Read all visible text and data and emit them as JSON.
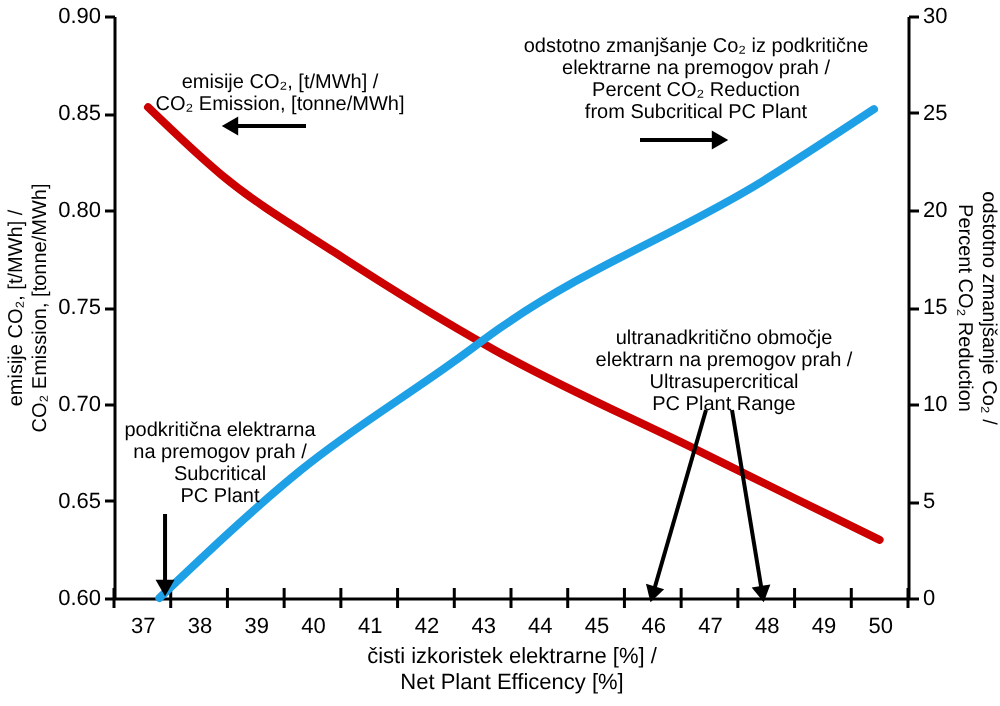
{
  "chart_data": {
    "type": "line",
    "xlabel": "čisti izkoristek elektrarne [%] /\nNet Plant Efficency [%]",
    "ylabel": "emisije CO₂, [t/MWh] /\nCO₂ Emission, [tonne/MWh]",
    "y2label": "odstotno zmanjšanje Co₂ /\nPercent CO₂ Reduction",
    "xlim": [
      36.5,
      50.5
    ],
    "xticks": [
      {
        "value": 36.5,
        "label": null
      },
      37,
      {
        "value": 37.5,
        "label": null
      },
      38,
      {
        "value": 38.5,
        "label": null
      },
      39,
      {
        "value": 39.5,
        "label": null
      },
      40,
      {
        "value": 40.5,
        "label": null
      },
      41,
      {
        "value": 41.5,
        "label": null
      },
      42,
      {
        "value": 42.5,
        "label": null
      },
      43,
      {
        "value": 43.5,
        "label": null
      },
      44,
      {
        "value": 44.5,
        "label": null
      },
      45,
      {
        "value": 45.5,
        "label": null
      },
      46,
      {
        "value": 46.5,
        "label": null
      },
      47,
      {
        "value": 47.5,
        "label": null
      },
      48,
      {
        "value": 48.5,
        "label": null
      },
      49,
      {
        "value": 49.5,
        "label": null
      },
      50,
      {
        "value": 50.5,
        "label": null
      }
    ],
    "ylim": [
      0.6,
      0.9
    ],
    "yticks": [
      {
        "value": 0.6,
        "label": "0.60"
      },
      {
        "value": 0.65,
        "label": "0.65"
      },
      {
        "value": 0.7,
        "label": "0.70"
      },
      {
        "value": 0.75,
        "label": "0.75"
      },
      {
        "value": 0.8,
        "label": "0.80"
      },
      {
        "value": 0.85,
        "label": "0.85"
      },
      {
        "value": 0.9,
        "label": "0.90"
      }
    ],
    "y2lim": [
      0,
      30
    ],
    "y2ticks": [
      0,
      5,
      10,
      15,
      20,
      25,
      30
    ],
    "grid": false,
    "marker": "none",
    "line_style": "solid",
    "series": [
      {
        "color": "#cc0000",
        "x": [
          37.1,
          38.4,
          40.4,
          43.2,
          46.8,
          48.6,
          50.0
        ],
        "values": [
          0.853,
          0.818,
          0.778,
          0.728,
          0.676,
          0.65,
          0.63
        ]
      },
      {
        "color": "#1ea0e6",
        "axis": "y2",
        "x": [
          37.3,
          39.8,
          42.5,
          43.3,
          48.0,
          49.9
        ],
        "values": [
          0,
          6.6,
          12.2,
          13.9,
          21.6,
          25.2
        ]
      }
    ],
    "annotations": [
      "emisije CO₂, [t/MWh] /\nCO₂ Emission, [tonne/MWh]",
      "odstotno zmanjšanje Co₂ iz podkritične\nelektrarne na premogov prah /\nPercent CO₂ Reduction\nfrom Subcritical PC Plant",
      {
        "text": "podkritična elektrarna\nna premogov prah /\nSubcritical\nPC Plant",
        "x": 37.4,
        "y": 0.6
      },
      "ultranadkritično območje\nelektrarn na premogov prah /\nUltrasupercritical\nPC Plant Range"
    ]
  }
}
